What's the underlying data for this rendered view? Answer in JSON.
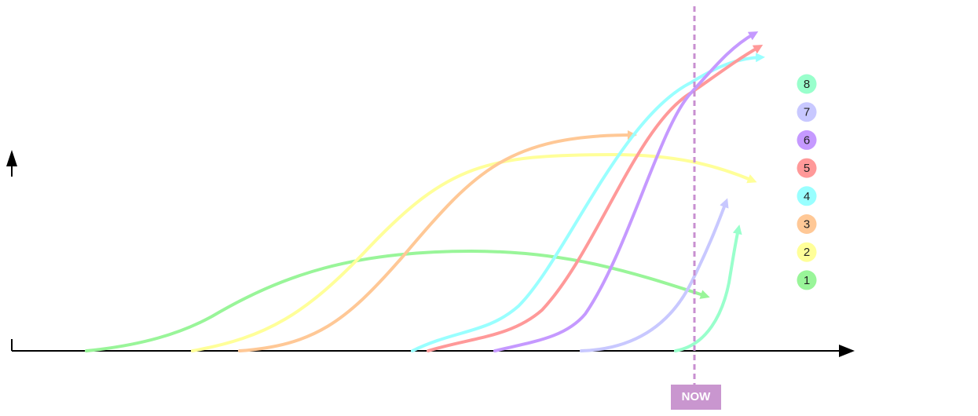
{
  "now_label": "NOW",
  "legend": [
    {
      "label": "8",
      "color": "#99ffcc"
    },
    {
      "label": "7",
      "color": "#c8c8ff"
    },
    {
      "label": "6",
      "color": "#c599ff"
    },
    {
      "label": "5",
      "color": "#ff9999"
    },
    {
      "label": "4",
      "color": "#99ffff"
    },
    {
      "label": "3",
      "color": "#ffc896"
    },
    {
      "label": "2",
      "color": "#ffff99"
    },
    {
      "label": "1",
      "color": "#99f599"
    }
  ]
}
